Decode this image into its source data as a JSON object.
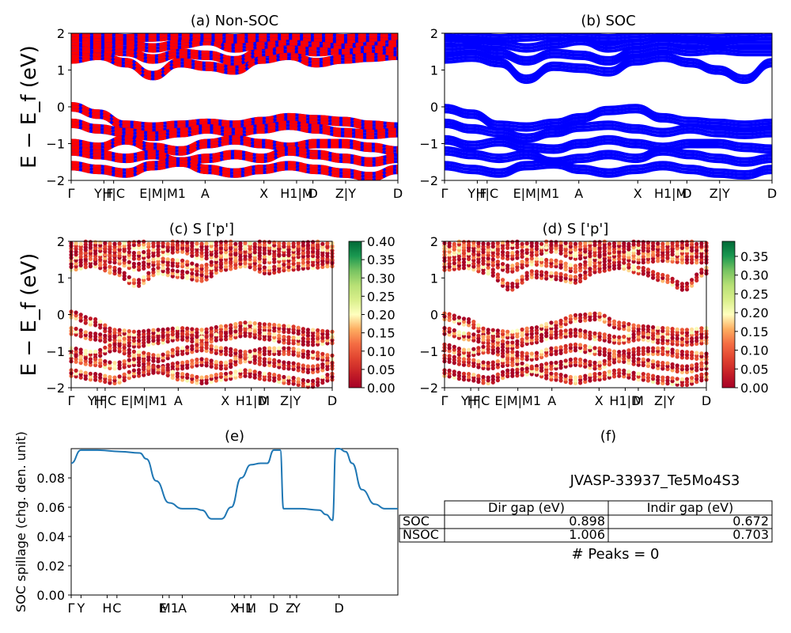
{
  "chart_data": [
    {
      "id": "a",
      "type": "line",
      "title": "(a) Non-SOC",
      "ylabel": "E − E_f (eV)",
      "ylim": [
        -2,
        2
      ],
      "yticks": [
        -2,
        -1,
        0,
        1,
        2
      ],
      "xtick_labels": [
        "Γ",
        "Y|F",
        "H|C",
        "E|M|M1",
        "A",
        "X",
        "H1|M",
        "D",
        "Z|Y",
        "D"
      ],
      "series_colors": [
        "#ff0000",
        "#0000ff"
      ],
      "line_style": "dashed red over blue",
      "bands": [
        [
          0.0,
          -0.2,
          -0.5,
          -0.55,
          -0.5,
          -0.45,
          -0.5,
          -0.4,
          -0.3,
          -0.35,
          -0.4,
          -0.5,
          -0.55
        ],
        [
          -0.45,
          -0.6,
          -0.7,
          -0.8,
          -0.7,
          -0.6,
          -0.7,
          -0.6,
          -0.5,
          -0.6,
          -0.7,
          -0.75,
          -0.7
        ],
        [
          -1.0,
          -1.1,
          -0.9,
          -1.1,
          -1.2,
          -1.0,
          -0.9,
          -1.0,
          -1.1,
          -1.0,
          -1.0,
          -1.1,
          -1.2
        ],
        [
          -1.2,
          -1.3,
          -1.4,
          -1.3,
          -1.5,
          -1.4,
          -1.3,
          -1.4,
          -1.2,
          -1.3,
          -1.4,
          -1.5,
          -1.4
        ],
        [
          -1.6,
          -1.7,
          -1.8,
          -1.6,
          -1.5,
          -1.7,
          -1.8,
          -1.7,
          -1.6,
          -1.7,
          -1.8,
          -1.9,
          -1.7
        ],
        [
          1.3,
          1.4,
          1.2,
          0.85,
          1.2,
          1.1,
          1.0,
          1.3,
          1.4,
          1.2,
          1.3,
          1.35,
          1.4
        ],
        [
          1.55,
          1.6,
          1.5,
          1.3,
          1.45,
          1.4,
          1.25,
          1.5,
          1.6,
          1.5,
          1.55,
          1.6,
          1.5
        ],
        [
          1.8,
          1.75,
          1.7,
          1.6,
          1.7,
          1.8,
          1.6,
          1.7,
          1.8,
          1.75,
          1.7,
          1.8,
          1.75
        ],
        [
          1.95,
          1.9,
          1.85,
          1.9,
          1.95,
          1.9,
          1.85,
          1.9,
          1.95,
          1.9,
          1.85,
          1.9,
          1.95
        ]
      ]
    },
    {
      "id": "b",
      "type": "line",
      "title": "(b) SOC",
      "ylabel": "",
      "ylim": [
        -2,
        2
      ],
      "yticks": [
        -2,
        -1,
        0,
        1,
        2
      ],
      "xtick_labels": [
        "Γ",
        "Y|F",
        "H|C",
        "E|M|M1",
        "A",
        "X",
        "H1|M",
        "D",
        "Z|Y",
        "D"
      ],
      "series_colors": [
        "#0000ff"
      ],
      "bands": [
        [
          -0.05,
          -0.2,
          -0.5,
          -0.55,
          -0.45,
          -0.3,
          -0.1,
          -0.05,
          -0.3,
          -0.4,
          -0.45,
          -0.5,
          -0.45
        ],
        [
          -0.45,
          -0.6,
          -0.7,
          -0.85,
          -0.7,
          -0.55,
          -0.5,
          -0.6,
          -0.7,
          -0.6,
          -0.7,
          -0.75,
          -0.7
        ],
        [
          -0.9,
          -1.05,
          -0.95,
          -1.1,
          -1.15,
          -1.0,
          -0.9,
          -1.0,
          -1.1,
          -1.0,
          -1.0,
          -1.1,
          -1.15
        ],
        [
          -1.2,
          -1.3,
          -1.4,
          -1.3,
          -1.5,
          -1.4,
          -1.3,
          -1.4,
          -1.2,
          -1.3,
          -1.4,
          -1.5,
          -1.4
        ],
        [
          -1.6,
          -1.7,
          -1.8,
          -1.6,
          -1.55,
          -1.7,
          -1.8,
          -1.7,
          -1.6,
          -1.7,
          -1.8,
          -1.85,
          -1.7
        ],
        [
          1.3,
          1.35,
          1.2,
          0.75,
          1.1,
          1.05,
          0.95,
          1.25,
          1.35,
          1.2,
          1.0,
          0.75,
          1.2
        ],
        [
          1.55,
          1.6,
          1.45,
          1.25,
          1.45,
          1.4,
          1.25,
          1.5,
          1.6,
          1.5,
          1.55,
          1.5,
          1.5
        ],
        [
          1.8,
          1.75,
          1.7,
          1.6,
          1.7,
          1.8,
          1.6,
          1.7,
          1.8,
          1.75,
          1.7,
          1.75,
          1.75
        ],
        [
          1.95,
          1.9,
          1.85,
          1.9,
          1.95,
          1.9,
          1.85,
          1.9,
          1.95,
          1.9,
          1.85,
          1.9,
          1.95
        ]
      ]
    },
    {
      "id": "c",
      "type": "scatter",
      "title": "(c)  S ['p']",
      "ylabel": "E − E_f (eV)",
      "ylim": [
        -2,
        2
      ],
      "yticks": [
        -2,
        -1,
        0,
        1,
        2
      ],
      "xtick_labels": [
        "Γ",
        "Y|F",
        "H|C",
        "E|M|M1",
        "A",
        "X",
        "H1|D",
        "M",
        "Z|Y",
        "D"
      ],
      "colorbar": {
        "cmap": "RdYlGn",
        "min": 0.0,
        "max": 0.4,
        "ticks": [
          "0.00",
          "0.05",
          "0.10",
          "0.15",
          "0.20",
          "0.25",
          "0.30",
          "0.35",
          "0.40"
        ]
      }
    },
    {
      "id": "d",
      "type": "scatter",
      "title": "(d) S ['p']",
      "ylabel": "",
      "ylim": [
        -2,
        2
      ],
      "yticks": [
        -2,
        -1,
        0,
        1,
        2
      ],
      "xtick_labels": [
        "Γ",
        "Y|F",
        "H|C",
        "E|M|M1",
        "A",
        "X",
        "H1|D",
        "M",
        "Z|Y",
        "D"
      ],
      "colorbar": {
        "cmap": "RdYlGn",
        "min": 0.0,
        "max": 0.39,
        "ticks": [
          "0.00",
          "0.05",
          "0.10",
          "0.15",
          "0.20",
          "0.25",
          "0.30",
          "0.35"
        ]
      }
    },
    {
      "id": "e",
      "type": "line",
      "title": "(e)",
      "ylabel": "SOC spillage (chg. den. unit)",
      "ylim": [
        0,
        0.1
      ],
      "yticks": [
        "0.00",
        "0.02",
        "0.04",
        "0.06",
        "0.08"
      ],
      "xtick_labels": [
        "Γ",
        "Y",
        "H",
        "C",
        "E",
        "M1",
        "A",
        "X",
        "H1",
        "M",
        "D",
        "Z",
        "Y",
        "D"
      ],
      "color": "#1f77b4",
      "x": [
        0,
        0.03,
        0.08,
        0.15,
        0.21,
        0.23,
        0.26,
        0.3,
        0.34,
        0.38,
        0.4,
        0.43,
        0.46,
        0.49,
        0.52,
        0.55,
        0.58,
        0.6,
        0.62,
        0.64,
        0.65,
        0.66,
        0.7,
        0.76,
        0.78,
        0.8,
        0.81,
        0.82,
        0.84,
        0.86,
        0.89,
        0.93,
        0.96,
        1.0
      ],
      "y": [
        0.09,
        0.099,
        0.099,
        0.098,
        0.097,
        0.093,
        0.078,
        0.063,
        0.059,
        0.059,
        0.058,
        0.052,
        0.052,
        0.06,
        0.08,
        0.089,
        0.09,
        0.09,
        0.099,
        0.099,
        0.059,
        0.059,
        0.059,
        0.058,
        0.055,
        0.051,
        0.1,
        0.1,
        0.098,
        0.09,
        0.072,
        0.062,
        0.059,
        0.059
      ]
    }
  ],
  "table_panel": {
    "title": "(f)",
    "material": "JVASP-33937_Te5Mo4S3",
    "headers": [
      "",
      "Dir gap (eV)",
      "Indir gap (eV)"
    ],
    "rows": [
      [
        "SOC",
        "0.898",
        "0.672"
      ],
      [
        "NSOC",
        "1.006",
        "0.703"
      ]
    ],
    "peaks": "# Peaks = 0"
  }
}
